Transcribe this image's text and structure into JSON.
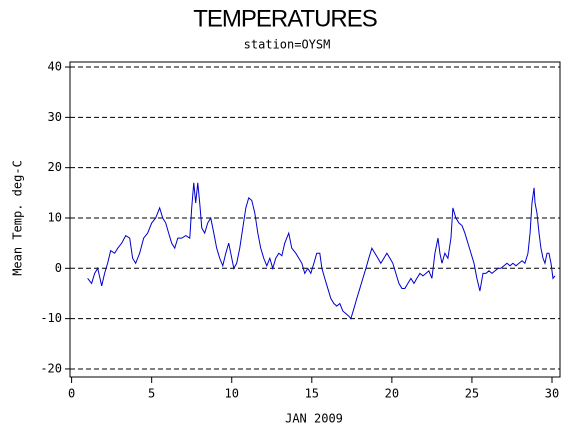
{
  "chart_data": {
    "type": "line",
    "title": "TEMPERATURES",
    "subtitle": "station=OYSM",
    "xlabel": "JAN 2009",
    "ylabel": "Mean Temp. deg-C",
    "xlim": [
      -0.1,
      30.5
    ],
    "ylim": [
      -21.6,
      41
    ],
    "xticks": [
      0,
      5,
      10,
      15,
      20,
      25,
      30
    ],
    "yticks": [
      -20,
      -10,
      0,
      10,
      20,
      30,
      40
    ],
    "grid": true,
    "x": [
      1.0,
      1.25,
      1.44,
      1.63,
      1.88,
      2.06,
      2.25,
      2.44,
      2.69,
      2.88,
      3.13,
      3.38,
      3.63,
      3.81,
      4.0,
      4.25,
      4.5,
      4.75,
      5.0,
      5.25,
      5.5,
      5.69,
      5.88,
      6.06,
      6.25,
      6.44,
      6.63,
      6.88,
      7.13,
      7.38,
      7.5,
      7.63,
      7.75,
      7.88,
      8.0,
      8.13,
      8.31,
      8.5,
      8.69,
      8.88,
      9.06,
      9.25,
      9.44,
      9.63,
      9.81,
      9.94,
      10.13,
      10.31,
      10.5,
      10.69,
      10.88,
      11.06,
      11.25,
      11.44,
      11.63,
      11.81,
      12.0,
      12.19,
      12.38,
      12.56,
      12.75,
      12.94,
      13.13,
      13.31,
      13.56,
      13.75,
      14.0,
      14.19,
      14.38,
      14.56,
      14.75,
      14.94,
      15.13,
      15.31,
      15.5,
      15.63,
      15.81,
      16.0,
      16.19,
      16.38,
      16.56,
      16.75,
      16.94,
      17.13,
      17.31,
      17.44,
      17.63,
      17.81,
      18.0,
      18.19,
      18.38,
      18.56,
      18.75,
      18.94,
      19.13,
      19.31,
      19.5,
      19.69,
      19.88,
      20.06,
      20.25,
      20.44,
      20.63,
      20.81,
      21.0,
      21.19,
      21.38,
      21.56,
      21.75,
      21.94,
      22.13,
      22.31,
      22.5,
      22.69,
      22.88,
      23.0,
      23.13,
      23.31,
      23.5,
      23.69,
      23.81,
      24.0,
      24.19,
      24.38,
      24.56,
      24.75,
      24.94,
      25.13,
      25.31,
      25.5,
      25.69,
      25.88,
      26.06,
      26.25,
      26.44,
      26.63,
      26.81,
      27.0,
      27.19,
      27.38,
      27.56,
      27.75,
      27.94,
      28.13,
      28.31,
      28.5,
      28.63,
      28.75,
      28.88,
      28.94,
      29.06,
      29.19,
      29.31,
      29.44,
      29.56,
      29.69,
      29.81,
      29.94,
      30.06,
      30.19
    ],
    "series": [
      {
        "name": "Mean Temp.",
        "color": "#0000cc",
        "values": [
          -2,
          -3,
          -1,
          0,
          -3.5,
          -1,
          1,
          3.5,
          3,
          4,
          5,
          6.5,
          6,
          2,
          1,
          3,
          6,
          7,
          9,
          10,
          12,
          10,
          9,
          7,
          5,
          4,
          6,
          6,
          6.5,
          6,
          12,
          17,
          13,
          17,
          13,
          8,
          7,
          9,
          10,
          7,
          4,
          2,
          0.5,
          3,
          5,
          3,
          0,
          1,
          4,
          8,
          12,
          14,
          13.5,
          11,
          7,
          4,
          2,
          0.5,
          2,
          0,
          2,
          3,
          2.5,
          5,
          7,
          4,
          3,
          2,
          1,
          -1,
          0,
          -1,
          1,
          3,
          3,
          0,
          -2,
          -4,
          -6,
          -7,
          -7.5,
          -7,
          -8.5,
          -9,
          -9.5,
          -10,
          -8,
          -6,
          -4,
          -2,
          0,
          2,
          4,
          3,
          2,
          1,
          2,
          3,
          2,
          1,
          -1,
          -3,
          -4,
          -4,
          -3,
          -2,
          -3,
          -2,
          -1,
          -1.5,
          -1,
          -0.5,
          -2,
          3,
          6,
          3,
          1,
          3,
          2,
          6,
          12,
          10,
          9,
          8.5,
          7,
          5,
          3,
          1,
          -2,
          -4.5,
          -1,
          -1,
          -0.5,
          -1,
          -0.5,
          0,
          0,
          0.5,
          1,
          0.5,
          1,
          0.5,
          1,
          1.5,
          1,
          3,
          7,
          13,
          16,
          13,
          11,
          7,
          4,
          2,
          1,
          3,
          3,
          1,
          -2,
          -1.5
        ]
      }
    ]
  }
}
